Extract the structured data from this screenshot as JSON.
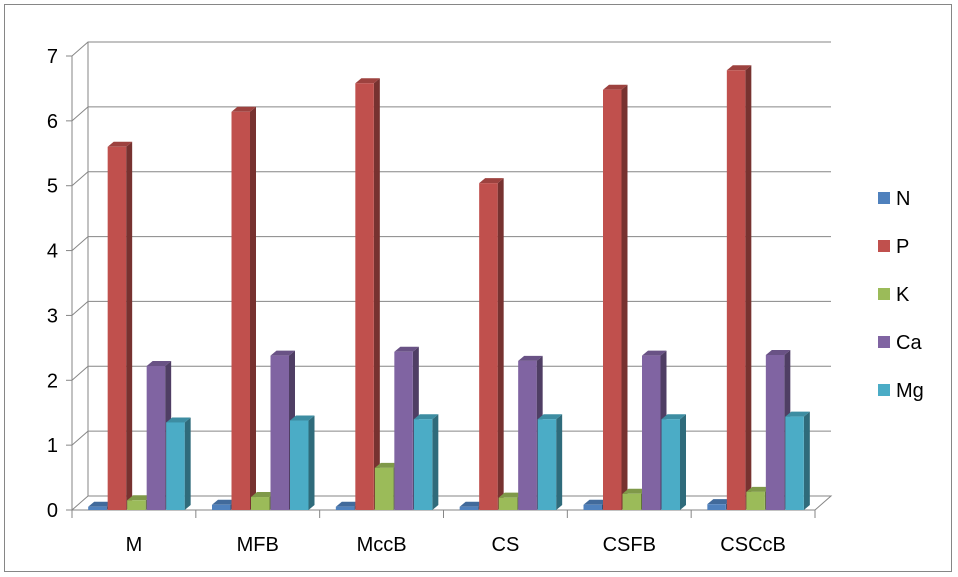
{
  "chart_data": {
    "type": "bar",
    "title": "",
    "xlabel": "",
    "ylabel": "",
    "ylim": [
      0,
      7
    ],
    "yticks": [
      "0",
      "1",
      "2",
      "3",
      "4",
      "5",
      "6",
      "7"
    ],
    "grid": true,
    "legend_position": "right",
    "categories": [
      "M",
      "MFB",
      "MccB",
      "CS",
      "CSFB",
      "CSCcB"
    ],
    "series": [
      {
        "name": "N",
        "color": "#4f81bd",
        "values": [
          0.05,
          0.08,
          0.05,
          0.05,
          0.08,
          0.09
        ]
      },
      {
        "name": "P",
        "color": "#c0504d",
        "values": [
          5.6,
          6.14,
          6.58,
          5.04,
          6.48,
          6.78
        ]
      },
      {
        "name": "K",
        "color": "#9bbb59",
        "values": [
          0.15,
          0.2,
          0.65,
          0.19,
          0.25,
          0.28
        ]
      },
      {
        "name": "Ca",
        "color": "#8064a2",
        "values": [
          2.22,
          2.38,
          2.44,
          2.3,
          2.38,
          2.39
        ]
      },
      {
        "name": "Mg",
        "color": "#4bacc6",
        "values": [
          1.35,
          1.38,
          1.4,
          1.4,
          1.4,
          1.44
        ]
      }
    ]
  }
}
